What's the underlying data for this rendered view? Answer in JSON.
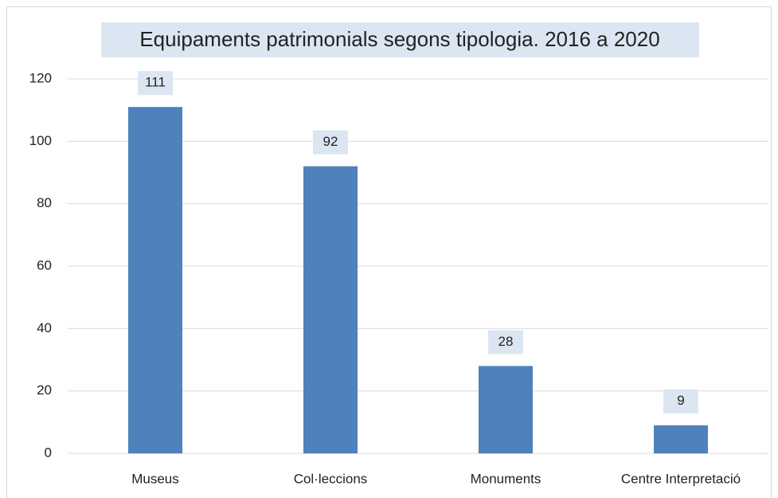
{
  "chart_data": {
    "type": "bar",
    "title": "Equipaments patrimonials segons tipologia. 2016 a 2020",
    "categories": [
      "Museus",
      "Col·leccions",
      "Monuments",
      "Centre Interpretació"
    ],
    "values": [
      111,
      92,
      28,
      9
    ],
    "color": "#4f81bd",
    "ylim": [
      0,
      120
    ],
    "yticks": [
      0,
      20,
      40,
      60,
      80,
      100,
      120
    ],
    "grid": true
  }
}
